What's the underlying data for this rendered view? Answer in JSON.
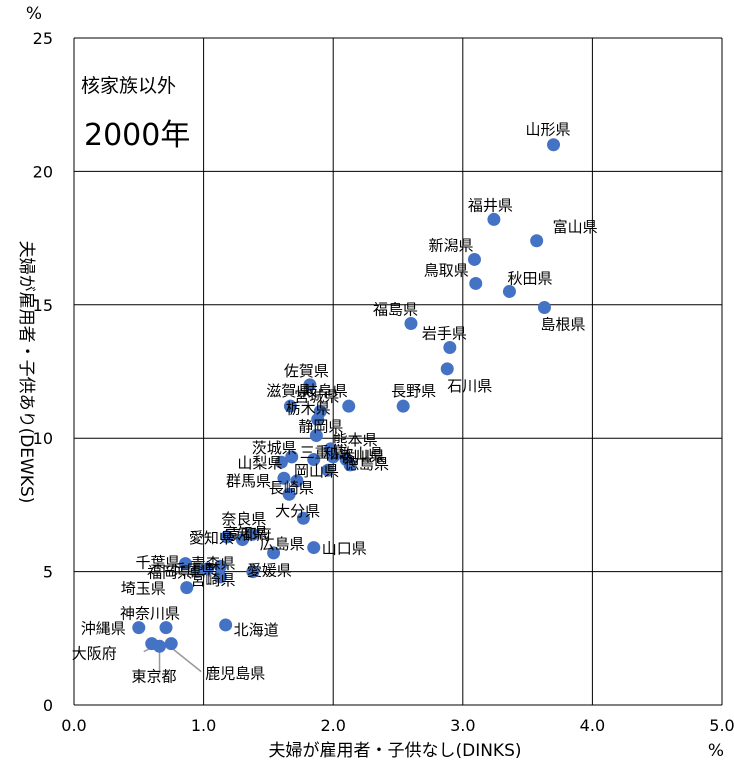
{
  "chart_data": {
    "type": "scatter",
    "xlabel": "夫婦が雇用者・子供なし(DINKS)",
    "ylabel": "夫婦が雇用者・子供あり(DEWKS)",
    "x_unit": "%",
    "y_unit": "%",
    "xlim": [
      0,
      5
    ],
    "ylim": [
      0,
      25
    ],
    "xticks": [
      "0.0",
      "1.0",
      "2.0",
      "3.0",
      "4.0",
      "5.0"
    ],
    "yticks": [
      "0",
      "5",
      "10",
      "15",
      "20",
      "25"
    ],
    "grid": true,
    "marker_color": "#4472c4",
    "annotations": [
      "核家族以外",
      "2000年"
    ],
    "points": [
      {
        "label": "山形県",
        "x": 3.7,
        "y": 21.0
      },
      {
        "label": "福井県",
        "x": 3.24,
        "y": 18.2
      },
      {
        "label": "富山県",
        "x": 3.57,
        "y": 17.4
      },
      {
        "label": "新潟県",
        "x": 3.09,
        "y": 16.7
      },
      {
        "label": "鳥取県",
        "x": 3.1,
        "y": 15.8
      },
      {
        "label": "秋田県",
        "x": 3.36,
        "y": 15.5
      },
      {
        "label": "島根県",
        "x": 3.63,
        "y": 14.9
      },
      {
        "label": "福島県",
        "x": 2.6,
        "y": 14.3
      },
      {
        "label": "岩手県",
        "x": 2.9,
        "y": 13.4
      },
      {
        "label": "石川県",
        "x": 2.88,
        "y": 12.6
      },
      {
        "label": "佐賀県",
        "x": 1.82,
        "y": 12.0
      },
      {
        "label": "滋賀県",
        "x": 1.67,
        "y": 11.2
      },
      {
        "label": "岐阜県",
        "x": 2.12,
        "y": 11.2
      },
      {
        "label": "長野県",
        "x": 2.54,
        "y": 11.2
      },
      {
        "label": "宮城県",
        "x": 1.9,
        "y": 11.0
      },
      {
        "label": "栃木県",
        "x": 1.88,
        "y": 10.7
      },
      {
        "label": "静岡県",
        "x": 1.87,
        "y": 10.1
      },
      {
        "label": "茨城県",
        "x": 1.68,
        "y": 9.3
      },
      {
        "label": "三重県",
        "x": 1.85,
        "y": 9.2
      },
      {
        "label": "熊本県",
        "x": 1.98,
        "y": 9.6
      },
      {
        "label": "和歌山県",
        "x": 2.0,
        "y": 9.3
      },
      {
        "label": "香川県",
        "x": 2.1,
        "y": 9.2
      },
      {
        "label": "徳島県",
        "x": 2.13,
        "y": 9.0
      },
      {
        "label": "山梨県",
        "x": 1.6,
        "y": 9.1
      },
      {
        "label": "岡山県",
        "x": 1.96,
        "y": 8.8
      },
      {
        "label": "群馬県",
        "x": 1.62,
        "y": 8.5
      },
      {
        "label": "長崎県",
        "x": 1.72,
        "y": 8.4
      },
      {
        "label": "大分県",
        "x": 1.66,
        "y": 7.9
      },
      {
        "label": "奈良県",
        "x": 1.77,
        "y": 7.0
      },
      {
        "label": "愛知県",
        "x": 1.18,
        "y": 6.3
      },
      {
        "label": "京都府",
        "x": 1.3,
        "y": 6.2
      },
      {
        "label": "高知県",
        "x": 1.38,
        "y": 6.4
      },
      {
        "label": "広島県",
        "x": 1.54,
        "y": 5.7
      },
      {
        "label": "山口県",
        "x": 1.85,
        "y": 5.9
      },
      {
        "label": "千葉県",
        "x": 0.86,
        "y": 5.3
      },
      {
        "label": "福岡県",
        "x": 0.95,
        "y": 5.0
      },
      {
        "label": "兵庫県",
        "x": 1.03,
        "y": 5.1
      },
      {
        "label": "青森県",
        "x": 1.13,
        "y": 5.2
      },
      {
        "label": "愛媛県",
        "x": 1.38,
        "y": 5.0
      },
      {
        "label": "宮崎県",
        "x": 1.13,
        "y": 4.8
      },
      {
        "label": "沖縄県",
        "x": 0.5,
        "y": 2.9
      },
      {
        "label": "埼玉県",
        "x": 0.87,
        "y": 4.4
      },
      {
        "label": "神奈川県",
        "x": 0.71,
        "y": 2.9
      },
      {
        "label": "北海道",
        "x": 1.17,
        "y": 3.0
      },
      {
        "label": "大阪府",
        "x": 0.6,
        "y": 2.3
      },
      {
        "label": "東京都",
        "x": 0.66,
        "y": 2.2
      },
      {
        "label": "鹿児島県",
        "x": 0.75,
        "y": 2.3
      }
    ]
  }
}
